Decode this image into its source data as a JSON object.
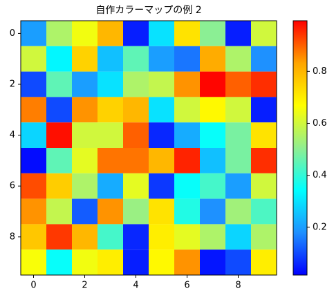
{
  "chart_data": {
    "type": "heatmap",
    "title": "自作カラーマップの例 2",
    "values": [
      [
        0.2,
        0.55,
        0.65,
        0.8,
        0.05,
        0.3,
        0.72,
        0.5,
        0.05,
        0.6
      ],
      [
        0.6,
        0.33,
        0.75,
        0.25,
        0.45,
        0.2,
        0.15,
        0.82,
        0.55,
        0.18
      ],
      [
        0.1,
        0.45,
        0.2,
        0.3,
        0.55,
        0.58,
        0.85,
        0.99,
        0.9,
        0.95
      ],
      [
        0.87,
        0.1,
        0.85,
        0.75,
        0.8,
        0.3,
        0.6,
        0.68,
        0.6,
        0.05
      ],
      [
        0.28,
        0.98,
        0.6,
        0.6,
        0.9,
        0.06,
        0.22,
        0.35,
        0.48,
        0.72
      ],
      [
        0.03,
        0.45,
        0.63,
        0.88,
        0.88,
        0.8,
        0.96,
        0.25,
        0.48,
        0.95
      ],
      [
        0.92,
        0.76,
        0.55,
        0.22,
        0.63,
        0.08,
        0.35,
        0.42,
        0.2,
        0.6
      ],
      [
        0.85,
        0.58,
        0.12,
        0.85,
        0.52,
        0.72,
        0.38,
        0.18,
        0.53,
        0.43
      ],
      [
        0.77,
        0.94,
        0.8,
        0.42,
        0.06,
        0.7,
        0.63,
        0.55,
        0.28,
        0.55
      ],
      [
        0.66,
        0.35,
        0.65,
        0.7,
        0.05,
        0.68,
        0.85,
        0.04,
        0.1,
        0.7
      ]
    ],
    "xlim": [
      -0.5,
      9.5
    ],
    "xticks": [
      0,
      2,
      4,
      6,
      8
    ],
    "ylim": [
      9.5,
      -0.5
    ],
    "yticks": [
      0,
      2,
      4,
      6,
      8
    ],
    "clim": [
      0.016,
      0.995
    ],
    "cticks": [
      0.2,
      0.4,
      0.6,
      0.8
    ],
    "colormap": [
      "#0000ff",
      "#1e90ff",
      "#00ffff",
      "#90ee90",
      "#ffff00",
      "#ffa500",
      "#ff0000"
    ]
  }
}
